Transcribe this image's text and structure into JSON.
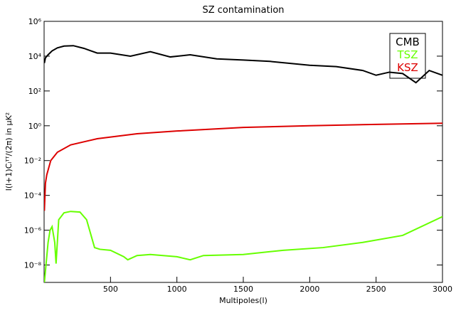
{
  "chart_data": {
    "type": "line",
    "title": "SZ contamination",
    "x_label": "Multipoles(l)",
    "y_label": "l(l+1)Cₗᵀᵀ/(2π) in μK²",
    "xlim": [
      0,
      3000
    ],
    "xticks": [
      500,
      1000,
      1500,
      2000,
      2500,
      3000
    ],
    "ylim": [
      1e-09,
      1000000.0
    ],
    "ylog": true,
    "yticks": [
      {
        "value": 1e-08,
        "label": "10⁻⁸"
      },
      {
        "value": 1e-06,
        "label": "10⁻⁶"
      },
      {
        "value": 0.0001,
        "label": "10⁻⁴"
      },
      {
        "value": 0.01,
        "label": "10⁻²"
      },
      {
        "value": 1,
        "label": "10⁰"
      },
      {
        "value": 100,
        "label": "10²"
      },
      {
        "value": 10000,
        "label": "10⁴"
      },
      {
        "value": 1000000,
        "label": "10⁶"
      }
    ],
    "legend": "top-right",
    "series": [
      {
        "name": "CMB",
        "color": "#000000",
        "x": [
          2,
          10,
          30,
          60,
          100,
          150,
          220,
          300,
          400,
          500,
          650,
          800,
          950,
          1100,
          1300,
          1500,
          1700,
          2000,
          2200,
          2400,
          2500,
          2600,
          2700,
          2800,
          2900,
          3000
        ],
        "values": [
          4000,
          8000,
          12000,
          20000,
          30000,
          38000,
          40000,
          28000,
          15000,
          15000,
          10000,
          18000,
          9000,
          12000,
          7000,
          6000,
          5000,
          3000,
          2500,
          1500,
          800,
          1200,
          1000,
          300,
          1500,
          800
        ]
      },
      {
        "name": "TSZ",
        "color": "#66ff00",
        "x": [
          2,
          30,
          45,
          60,
          80,
          90,
          110,
          150,
          200,
          270,
          320,
          380,
          420,
          500,
          600,
          630,
          700,
          800,
          1000,
          1100,
          1200,
          1500,
          1800,
          2100,
          2400,
          2700,
          3000
        ],
        "values": [
          1e-09,
          2e-07,
          1e-06,
          1.6e-06,
          2e-07,
          1.2e-08,
          4e-06,
          1e-05,
          1.2e-05,
          1.1e-05,
          4e-06,
          1e-07,
          8e-08,
          7e-08,
          3e-08,
          2e-08,
          3.5e-08,
          4e-08,
          3e-08,
          2e-08,
          3.5e-08,
          4e-08,
          7e-08,
          1e-07,
          2e-07,
          5e-07,
          6e-06
        ]
      },
      {
        "name": "KSZ",
        "color": "#dd0000",
        "x": [
          2,
          10,
          20,
          50,
          100,
          200,
          400,
          700,
          1000,
          1500,
          2000,
          2500,
          3000
        ],
        "values": [
          1.3e-05,
          0.0005,
          0.0015,
          0.01,
          0.03,
          0.08,
          0.18,
          0.35,
          0.5,
          0.8,
          1.0,
          1.2,
          1.4
        ]
      }
    ]
  }
}
